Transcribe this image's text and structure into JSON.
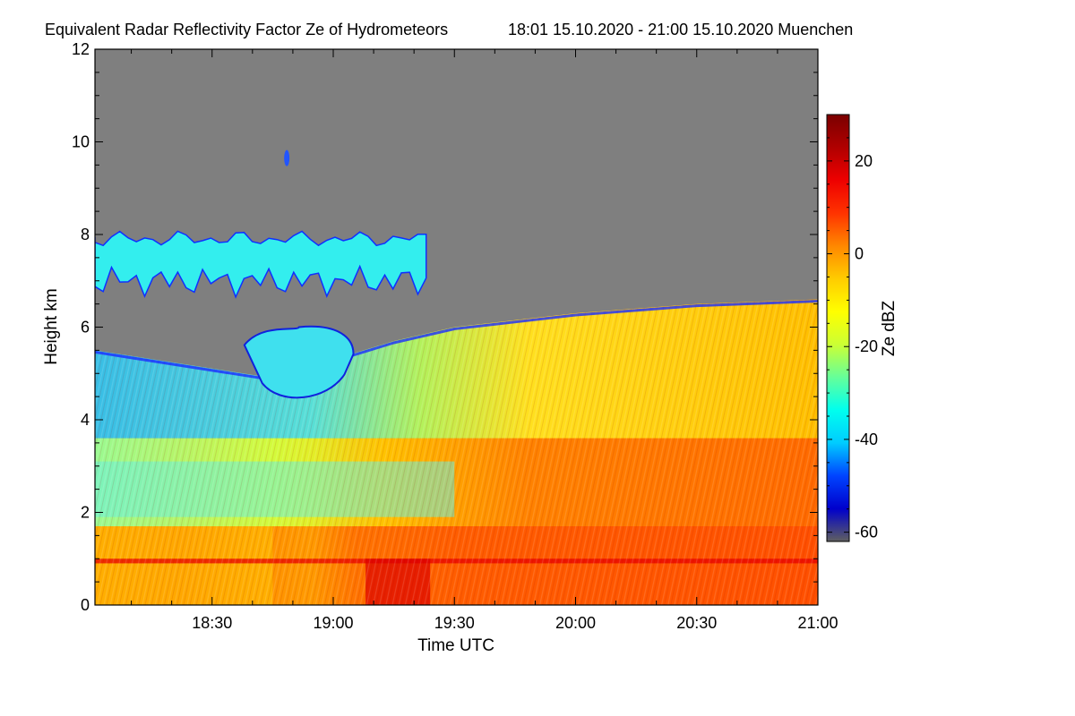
{
  "chart_data": {
    "type": "heatmap",
    "title": "Equivalent Radar Reflectivity Factor Ze of Hydrometeors",
    "subtitle": "18:01 15.10.2020 - 21:00 15.10.2020 Muenchen",
    "xlabel": "Time UTC",
    "ylabel": "Height km",
    "xlim": [
      "18:01",
      "21:00"
    ],
    "ylim": [
      0,
      12
    ],
    "x_tick_labels": [
      "18:30",
      "19:00",
      "19:30",
      "20:00",
      "20:30",
      "21:00"
    ],
    "y_tick_labels": [
      "0",
      "2",
      "4",
      "6",
      "8",
      "10",
      "12"
    ],
    "colorbar": {
      "label": "Ze dBZ",
      "range": [
        -62,
        30
      ],
      "tick_labels": [
        "20",
        "0",
        "-20",
        "-40",
        "-60"
      ],
      "colors": [
        "#606060",
        "#0000cc",
        "#0044ff",
        "#00ccff",
        "#00ffee",
        "#66ff99",
        "#ccff33",
        "#ffff00",
        "#ffcc00",
        "#ff8800",
        "#ff3300",
        "#ee0000",
        "#b00000",
        "#7a0000"
      ]
    },
    "no_signal_color": "#7f7f7f",
    "echo_features": [
      {
        "name": "main precipitation",
        "time": [
          "18:01",
          "21:00"
        ],
        "height_km": [
          0,
          6.6
        ],
        "top_height_km": {
          "18:01": 5.5,
          "18:45": 4.9,
          "19:15": 5.7,
          "19:30": 6.0,
          "20:00": 6.3,
          "20:30": 6.5,
          "21:00": 6.6
        }
      },
      {
        "name": "bright band",
        "time": [
          "18:01",
          "21:00"
        ],
        "height_km": [
          0.9,
          1.0
        ],
        "ze_dbz": 20
      },
      {
        "name": "upper cirrus layer",
        "time": [
          "18:01",
          "19:23"
        ],
        "height_km": [
          6.8,
          8.1
        ],
        "ze_dbz": -25
      },
      {
        "name": "mid-level cloud",
        "time": [
          "18:38",
          "19:05"
        ],
        "height_km": [
          4.4,
          6.0
        ],
        "ze_dbz": -25
      },
      {
        "name": "isolated echo",
        "time": [
          "18:48",
          "18:49"
        ],
        "height_km": [
          9.5,
          9.8
        ],
        "ze_dbz": -35
      }
    ]
  }
}
